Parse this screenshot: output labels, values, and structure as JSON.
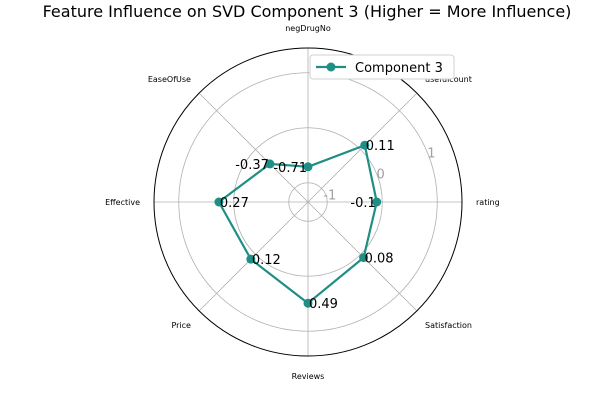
{
  "chart_data": {
    "type": "radar",
    "title": "Feature Influence on SVD Component 3 (Higher = More Influence)",
    "categories": [
      "rating",
      "usefulcount",
      "negDrugNo",
      "EaseOfUse",
      "Effective",
      "Price",
      "Reviews",
      "Satisfaction"
    ],
    "series": [
      {
        "name": "Component 3",
        "color": "#1f8f86",
        "values": [
          -0.1,
          0.11,
          -0.71,
          -0.37,
          0.27,
          0.12,
          0.49,
          0.08
        ],
        "labels": [
          "-0.1",
          "0.11",
          "-0.71",
          "-0.37",
          "0.27",
          "0.12",
          "0.49",
          "0.08"
        ]
      }
    ],
    "radial_ticks": [
      -1,
      0,
      1
    ],
    "radial_tick_labels": [
      "-1",
      "0",
      "1"
    ],
    "rlim": [
      -1.35,
      1.45
    ],
    "legend_position": "top-right",
    "grid": true
  }
}
